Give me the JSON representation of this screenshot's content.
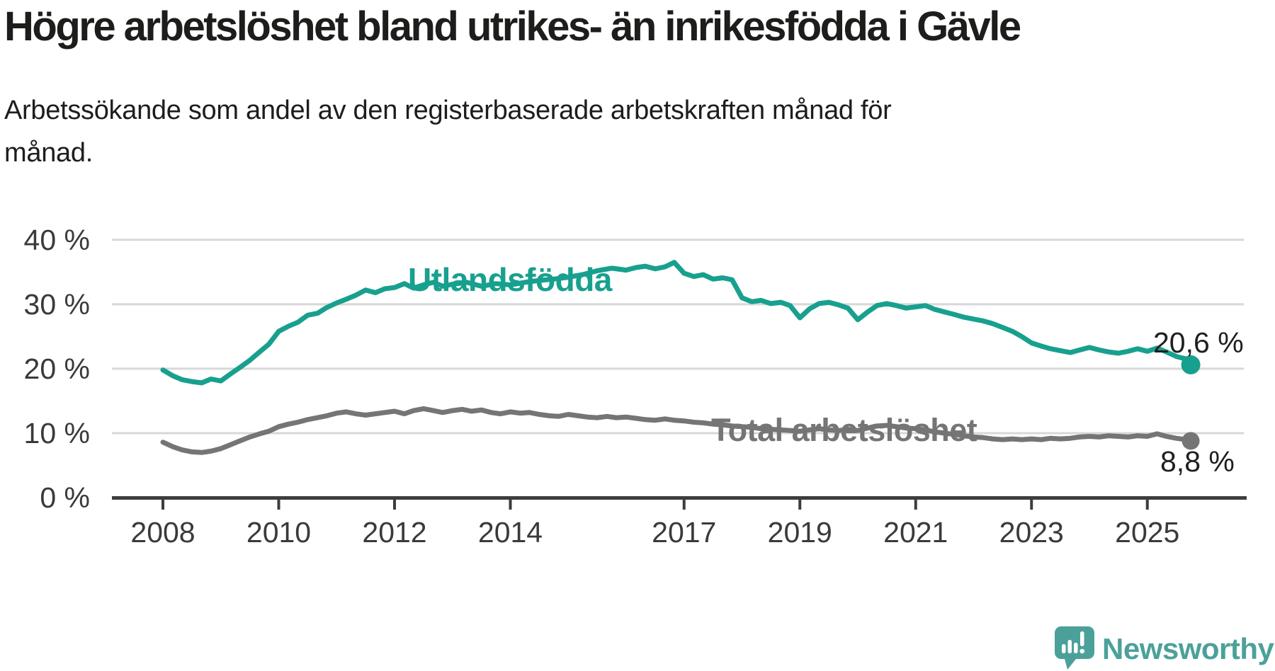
{
  "header": {
    "title": "Högre arbetslöshet bland utrikes- än inrikesfödda i Gävle",
    "subtitle_lines": [
      "Arbetssökande som andel av den registerbaserade arbetskraften månad för",
      "månad."
    ]
  },
  "chart_data": {
    "type": "line",
    "title": "Högre arbetslöshet bland utrikes- än inrikesfödda i Gävle",
    "subtitle": "Arbetssökande som andel av den registerbaserade arbetskraften månad för månad.",
    "grid": "horizontal-only",
    "legend_position": "inline-labels",
    "x_ticks": [
      "2008",
      "2010",
      "2012",
      "2014",
      "2017",
      "2019",
      "2021",
      "2023",
      "2025"
    ],
    "y_ticks": [
      {
        "label": "0 %",
        "value": 0
      },
      {
        "label": "10 %",
        "value": 10
      },
      {
        "label": "20 %",
        "value": 20
      },
      {
        "label": "30 %",
        "value": 30
      },
      {
        "label": "40 %",
        "value": 40
      }
    ],
    "x_range": [
      2008.0,
      2025.75
    ],
    "ylim": [
      0,
      43
    ],
    "series": [
      {
        "name": "Utlandsfödda",
        "color": "#18a08f",
        "end_label": "20,6 %",
        "end_value": 20.6,
        "points": [
          [
            2008.0,
            19.8
          ],
          [
            2008.17,
            18.9
          ],
          [
            2008.33,
            18.3
          ],
          [
            2008.5,
            18.0
          ],
          [
            2008.67,
            17.8
          ],
          [
            2008.83,
            18.4
          ],
          [
            2009.0,
            18.1
          ],
          [
            2009.17,
            19.2
          ],
          [
            2009.33,
            20.2
          ],
          [
            2009.5,
            21.3
          ],
          [
            2009.67,
            22.6
          ],
          [
            2009.83,
            23.8
          ],
          [
            2010.0,
            25.8
          ],
          [
            2010.17,
            26.6
          ],
          [
            2010.33,
            27.2
          ],
          [
            2010.5,
            28.3
          ],
          [
            2010.67,
            28.6
          ],
          [
            2010.83,
            29.5
          ],
          [
            2011.0,
            30.2
          ],
          [
            2011.17,
            30.8
          ],
          [
            2011.33,
            31.4
          ],
          [
            2011.5,
            32.2
          ],
          [
            2011.67,
            31.8
          ],
          [
            2011.83,
            32.4
          ],
          [
            2012.0,
            32.6
          ],
          [
            2012.17,
            33.2
          ],
          [
            2012.33,
            32.5
          ],
          [
            2012.5,
            33.0
          ],
          [
            2012.67,
            33.4
          ],
          [
            2012.83,
            32.8
          ],
          [
            2013.0,
            33.1
          ],
          [
            2013.25,
            33.4
          ],
          [
            2013.5,
            32.8
          ],
          [
            2013.75,
            33.2
          ],
          [
            2014.0,
            33.0
          ],
          [
            2014.25,
            33.4
          ],
          [
            2014.5,
            33.7
          ],
          [
            2014.75,
            33.9
          ],
          [
            2015.0,
            34.2
          ],
          [
            2015.25,
            34.6
          ],
          [
            2015.5,
            35.2
          ],
          [
            2015.75,
            35.6
          ],
          [
            2016.0,
            35.3
          ],
          [
            2016.17,
            35.7
          ],
          [
            2016.33,
            35.9
          ],
          [
            2016.5,
            35.5
          ],
          [
            2016.67,
            35.8
          ],
          [
            2016.83,
            36.5
          ],
          [
            2017.0,
            34.8
          ],
          [
            2017.17,
            34.3
          ],
          [
            2017.33,
            34.6
          ],
          [
            2017.5,
            33.9
          ],
          [
            2017.67,
            34.1
          ],
          [
            2017.83,
            33.8
          ],
          [
            2018.0,
            31.0
          ],
          [
            2018.17,
            30.4
          ],
          [
            2018.33,
            30.6
          ],
          [
            2018.5,
            30.1
          ],
          [
            2018.67,
            30.3
          ],
          [
            2018.83,
            29.8
          ],
          [
            2019.0,
            27.9
          ],
          [
            2019.17,
            29.3
          ],
          [
            2019.33,
            30.1
          ],
          [
            2019.5,
            30.3
          ],
          [
            2019.67,
            29.9
          ],
          [
            2019.83,
            29.4
          ],
          [
            2020.0,
            27.6
          ],
          [
            2020.17,
            28.8
          ],
          [
            2020.33,
            29.8
          ],
          [
            2020.5,
            30.1
          ],
          [
            2020.67,
            29.8
          ],
          [
            2020.83,
            29.4
          ],
          [
            2021.0,
            29.6
          ],
          [
            2021.17,
            29.8
          ],
          [
            2021.33,
            29.2
          ],
          [
            2021.5,
            28.8
          ],
          [
            2021.67,
            28.4
          ],
          [
            2021.83,
            28.0
          ],
          [
            2022.0,
            27.7
          ],
          [
            2022.17,
            27.4
          ],
          [
            2022.33,
            27.0
          ],
          [
            2022.5,
            26.4
          ],
          [
            2022.67,
            25.8
          ],
          [
            2022.83,
            25.0
          ],
          [
            2023.0,
            24.0
          ],
          [
            2023.17,
            23.5
          ],
          [
            2023.33,
            23.1
          ],
          [
            2023.5,
            22.8
          ],
          [
            2023.67,
            22.5
          ],
          [
            2023.83,
            22.9
          ],
          [
            2024.0,
            23.3
          ],
          [
            2024.17,
            22.9
          ],
          [
            2024.33,
            22.6
          ],
          [
            2024.5,
            22.4
          ],
          [
            2024.67,
            22.7
          ],
          [
            2024.83,
            23.1
          ],
          [
            2025.0,
            22.7
          ],
          [
            2025.17,
            23.2
          ],
          [
            2025.33,
            22.6
          ],
          [
            2025.5,
            21.9
          ],
          [
            2025.67,
            21.5
          ],
          [
            2025.75,
            20.6
          ]
        ]
      },
      {
        "name": "Total arbetslöshet",
        "color": "#757575",
        "end_label": "8,8 %",
        "end_value": 8.8,
        "points": [
          [
            2008.0,
            8.6
          ],
          [
            2008.17,
            7.9
          ],
          [
            2008.33,
            7.4
          ],
          [
            2008.5,
            7.1
          ],
          [
            2008.67,
            7.0
          ],
          [
            2008.83,
            7.2
          ],
          [
            2009.0,
            7.6
          ],
          [
            2009.17,
            8.2
          ],
          [
            2009.33,
            8.8
          ],
          [
            2009.5,
            9.4
          ],
          [
            2009.67,
            9.9
          ],
          [
            2009.83,
            10.3
          ],
          [
            2010.0,
            11.0
          ],
          [
            2010.17,
            11.4
          ],
          [
            2010.33,
            11.7
          ],
          [
            2010.5,
            12.1
          ],
          [
            2010.67,
            12.4
          ],
          [
            2010.83,
            12.7
          ],
          [
            2011.0,
            13.1
          ],
          [
            2011.17,
            13.3
          ],
          [
            2011.33,
            13.0
          ],
          [
            2011.5,
            12.8
          ],
          [
            2011.67,
            13.0
          ],
          [
            2011.83,
            13.2
          ],
          [
            2012.0,
            13.4
          ],
          [
            2012.17,
            13.0
          ],
          [
            2012.33,
            13.5
          ],
          [
            2012.5,
            13.8
          ],
          [
            2012.67,
            13.5
          ],
          [
            2012.83,
            13.2
          ],
          [
            2013.0,
            13.5
          ],
          [
            2013.17,
            13.7
          ],
          [
            2013.33,
            13.4
          ],
          [
            2013.5,
            13.6
          ],
          [
            2013.67,
            13.2
          ],
          [
            2013.83,
            13.0
          ],
          [
            2014.0,
            13.3
          ],
          [
            2014.17,
            13.1
          ],
          [
            2014.33,
            13.2
          ],
          [
            2014.5,
            12.9
          ],
          [
            2014.67,
            12.7
          ],
          [
            2014.83,
            12.6
          ],
          [
            2015.0,
            12.9
          ],
          [
            2015.17,
            12.7
          ],
          [
            2015.33,
            12.5
          ],
          [
            2015.5,
            12.4
          ],
          [
            2015.67,
            12.6
          ],
          [
            2015.83,
            12.4
          ],
          [
            2016.0,
            12.5
          ],
          [
            2016.17,
            12.3
          ],
          [
            2016.33,
            12.1
          ],
          [
            2016.5,
            12.0
          ],
          [
            2016.67,
            12.2
          ],
          [
            2016.83,
            12.0
          ],
          [
            2017.0,
            11.9
          ],
          [
            2017.17,
            11.7
          ],
          [
            2017.33,
            11.6
          ],
          [
            2017.5,
            11.4
          ],
          [
            2017.67,
            11.3
          ],
          [
            2017.83,
            11.1
          ],
          [
            2018.0,
            11.0
          ],
          [
            2018.17,
            10.9
          ],
          [
            2018.33,
            10.7
          ],
          [
            2018.5,
            10.6
          ],
          [
            2018.67,
            10.5
          ],
          [
            2018.83,
            10.4
          ],
          [
            2019.0,
            10.3
          ],
          [
            2019.17,
            10.5
          ],
          [
            2019.33,
            10.7
          ],
          [
            2019.5,
            10.5
          ],
          [
            2019.67,
            10.4
          ],
          [
            2019.83,
            10.6
          ],
          [
            2020.0,
            10.4
          ],
          [
            2020.17,
            10.8
          ],
          [
            2020.33,
            11.1
          ],
          [
            2020.5,
            11.2
          ],
          [
            2020.67,
            11.0
          ],
          [
            2020.83,
            10.8
          ],
          [
            2021.0,
            10.7
          ],
          [
            2021.17,
            10.5
          ],
          [
            2021.33,
            10.2
          ],
          [
            2021.5,
            10.0
          ],
          [
            2021.67,
            9.8
          ],
          [
            2021.83,
            9.6
          ],
          [
            2022.0,
            9.4
          ],
          [
            2022.17,
            9.3
          ],
          [
            2022.33,
            9.1
          ],
          [
            2022.5,
            9.0
          ],
          [
            2022.67,
            9.1
          ],
          [
            2022.83,
            9.0
          ],
          [
            2023.0,
            9.1
          ],
          [
            2023.17,
            9.0
          ],
          [
            2023.33,
            9.2
          ],
          [
            2023.5,
            9.1
          ],
          [
            2023.67,
            9.2
          ],
          [
            2023.83,
            9.4
          ],
          [
            2024.0,
            9.5
          ],
          [
            2024.17,
            9.4
          ],
          [
            2024.33,
            9.6
          ],
          [
            2024.5,
            9.5
          ],
          [
            2024.67,
            9.4
          ],
          [
            2024.83,
            9.6
          ],
          [
            2025.0,
            9.5
          ],
          [
            2025.17,
            9.9
          ],
          [
            2025.33,
            9.5
          ],
          [
            2025.5,
            9.2
          ],
          [
            2025.67,
            9.0
          ],
          [
            2025.75,
            8.8
          ]
        ]
      }
    ]
  },
  "footer": {
    "brand": "Newsworthy",
    "logo_icon": "newsworthy-speech-bubble-bar-chart-icon"
  },
  "colors": {
    "accent_teal": "#18a08f",
    "series_gray": "#757575",
    "gridline": "#d8d8d8",
    "axis": "#3d3d3d",
    "tick_text": "#3a3a3a",
    "text": "#1d1d1b",
    "brand_teal": "#4ba19a"
  }
}
